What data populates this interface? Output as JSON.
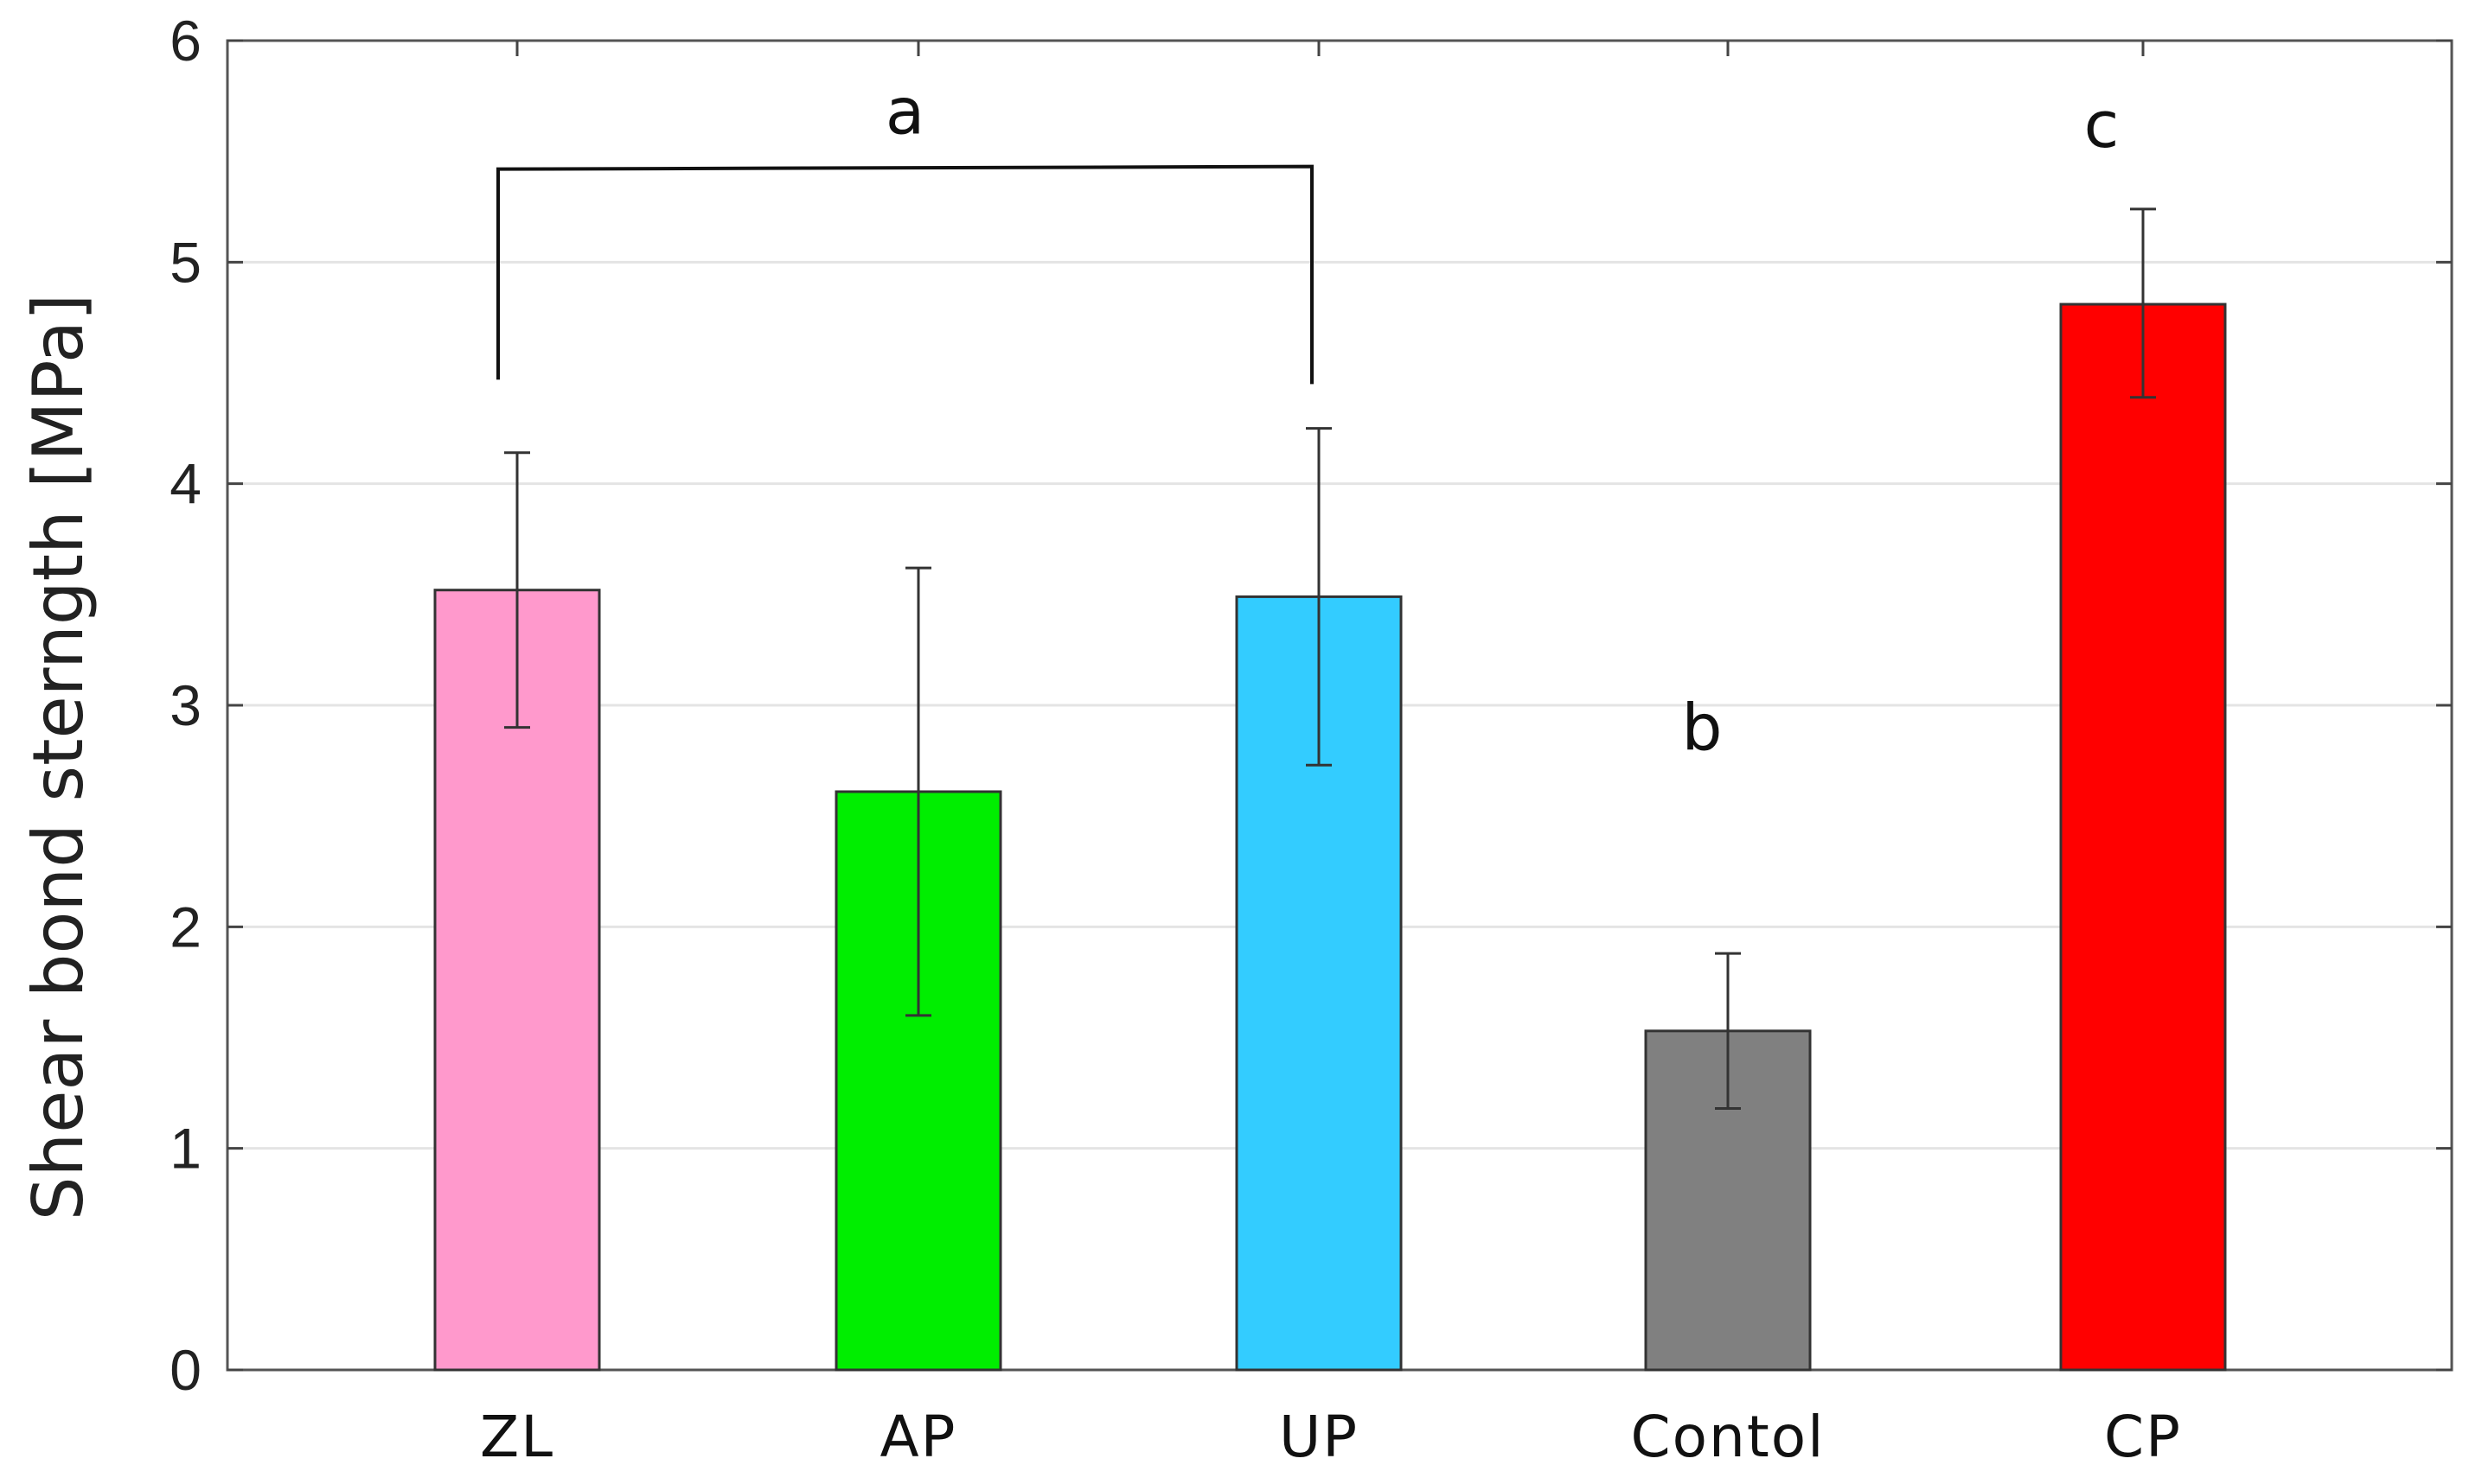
{
  "chart_data": {
    "type": "bar",
    "title": "",
    "xlabel": "",
    "ylabel": "Shear bond sterngth [MPa]",
    "ylim": [
      0,
      6
    ],
    "yticks": [
      "0",
      "1",
      "2",
      "3",
      "4",
      "5",
      "6"
    ],
    "grid": true,
    "categories": [
      "ZL",
      "AP",
      "UP",
      "Contol",
      "CP"
    ],
    "values": [
      3.52,
      2.61,
      3.49,
      1.53,
      4.81
    ],
    "errors": [
      {
        "low": 2.9,
        "high": 4.14
      },
      {
        "low": 1.6,
        "high": 3.62
      },
      {
        "low": 2.73,
        "high": 4.25
      },
      {
        "low": 1.18,
        "high": 1.88
      },
      {
        "low": 4.39,
        "high": 5.24
      }
    ],
    "colors": [
      "#ff99cc",
      "#00ee00",
      "#33ccff",
      "#808080",
      "#ff0000"
    ],
    "annotations": [
      {
        "text": "a",
        "bracket": [
          "ZL",
          "UP"
        ]
      },
      {
        "text": "b",
        "category": "Contol"
      },
      {
        "text": "c",
        "category": "CP"
      }
    ]
  }
}
